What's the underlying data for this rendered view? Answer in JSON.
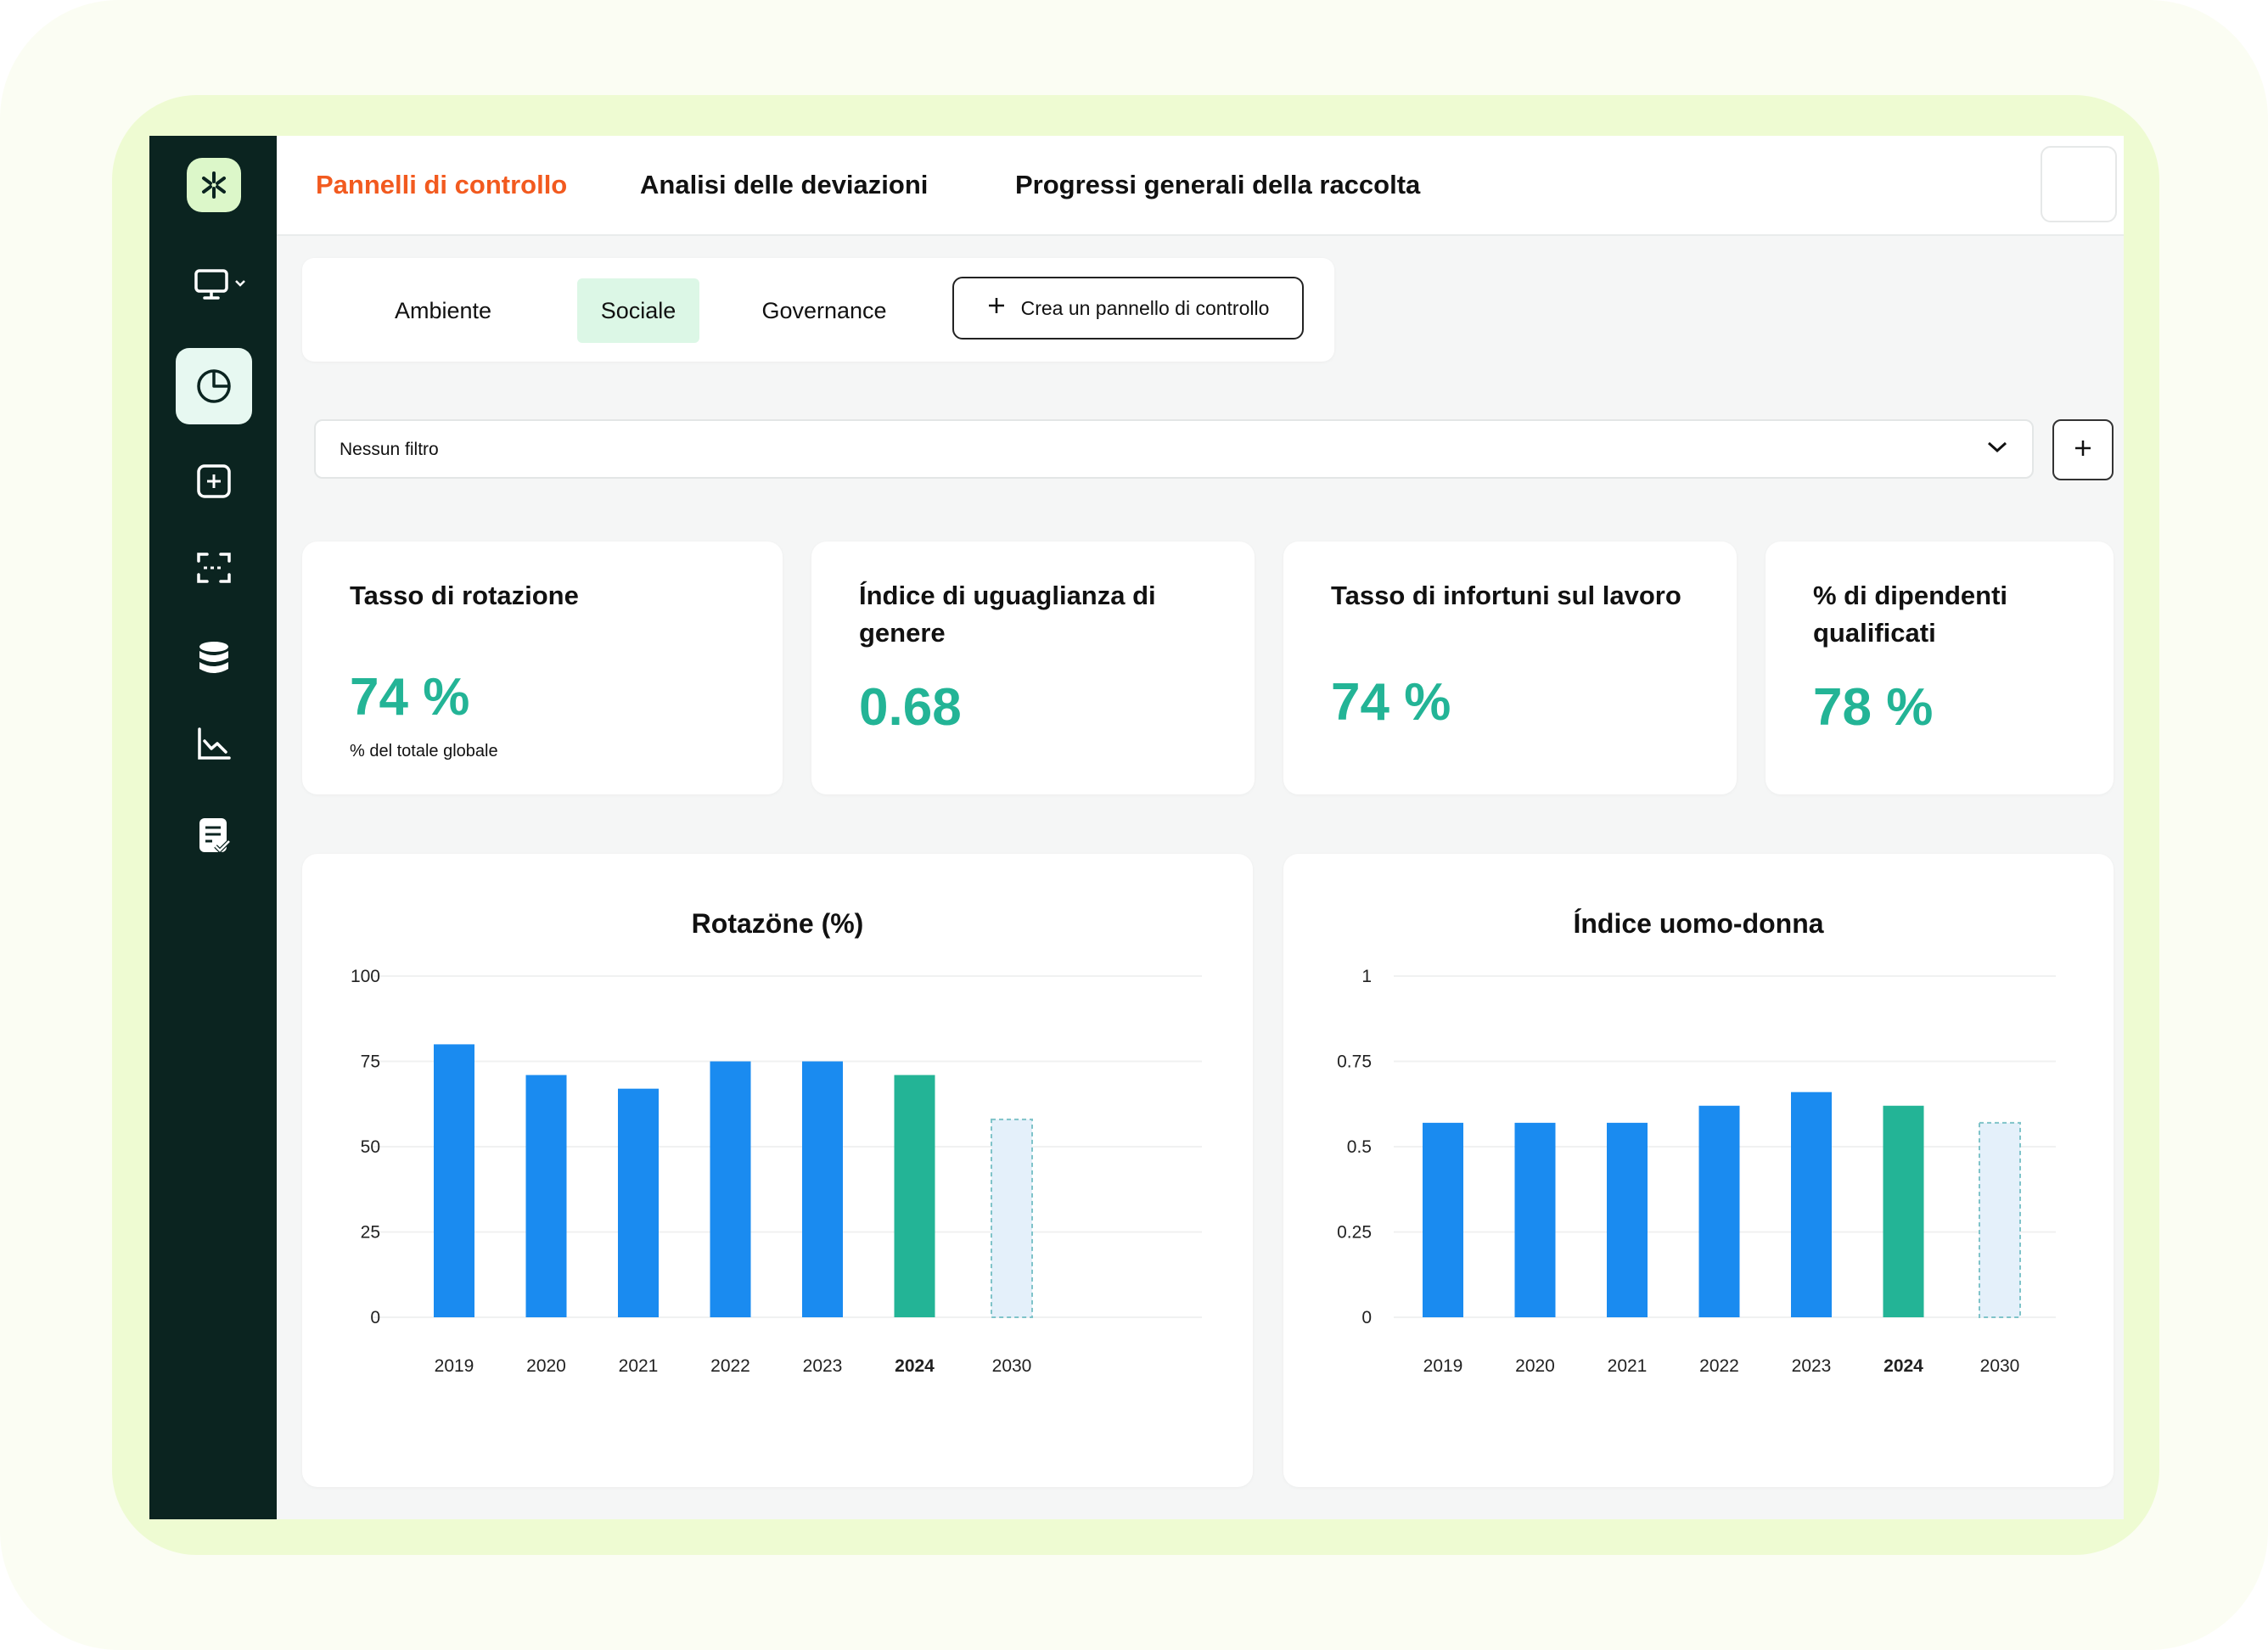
{
  "topnav": {
    "items": [
      "Pannelli di controllo",
      "Analisi delle deviazioni",
      "Progressi generali della raccolta"
    ],
    "active_index": 0,
    "active_color": "#f25a1f"
  },
  "sidebar": {
    "icons": [
      "logo-icon",
      "monitor-icon",
      "pie-chart-icon",
      "dashboard-grid-icon",
      "scan-icon",
      "database-icon",
      "line-chart-icon",
      "report-check-icon"
    ],
    "active_icon": "pie-chart-icon"
  },
  "categories": {
    "tabs": [
      "Ambiente",
      "Sociale",
      "Governance"
    ],
    "active_index": 1,
    "create_label": "Crea un pannello di controllo"
  },
  "filter": {
    "value": "Nessun filtro"
  },
  "kpis": [
    {
      "title": "Tasso di rotazione",
      "value": "74 %",
      "sub": "% del totale globale"
    },
    {
      "title": "Índice di uguaglianza di genere",
      "value": "0.68"
    },
    {
      "title": "Tasso di infortuni sul lavoro",
      "value": "74 %"
    },
    {
      "title": "% di dipendenti qualificati",
      "value": "78 %"
    }
  ],
  "colors": {
    "bar": "#1a8bf0",
    "current": "#23b496",
    "projection_fill": "#e4f0fa",
    "projection_stroke": "#7fc3c9",
    "kpi_value": "#23b496"
  },
  "chart_data": [
    {
      "type": "bar",
      "title": "Rotazöne (%)",
      "categories": [
        "2019",
        "2020",
        "2021",
        "2022",
        "2023",
        "2024",
        "2030"
      ],
      "values": [
        80,
        71,
        67,
        75,
        75,
        71,
        58
      ],
      "highlight": "2024",
      "projection": "2030",
      "ylim": [
        0,
        100
      ],
      "yticks": [
        0,
        25,
        50,
        75,
        100
      ],
      "ytick_labels": [
        "0",
        "25",
        "50",
        "75",
        "100"
      ],
      "grid": true
    },
    {
      "type": "bar",
      "title": "Índice uomo-donna",
      "categories": [
        "2019",
        "2020",
        "2021",
        "2022",
        "2023",
        "2024",
        "2030"
      ],
      "values": [
        0.57,
        0.57,
        0.57,
        0.62,
        0.66,
        0.62,
        0.57
      ],
      "highlight": "2024",
      "projection": "2030",
      "ylim": [
        0,
        1
      ],
      "yticks": [
        0,
        0.25,
        0.5,
        0.75,
        1
      ],
      "ytick_labels": [
        "0",
        "0.25",
        "0.5",
        "0.75",
        "1"
      ],
      "grid": true
    }
  ]
}
